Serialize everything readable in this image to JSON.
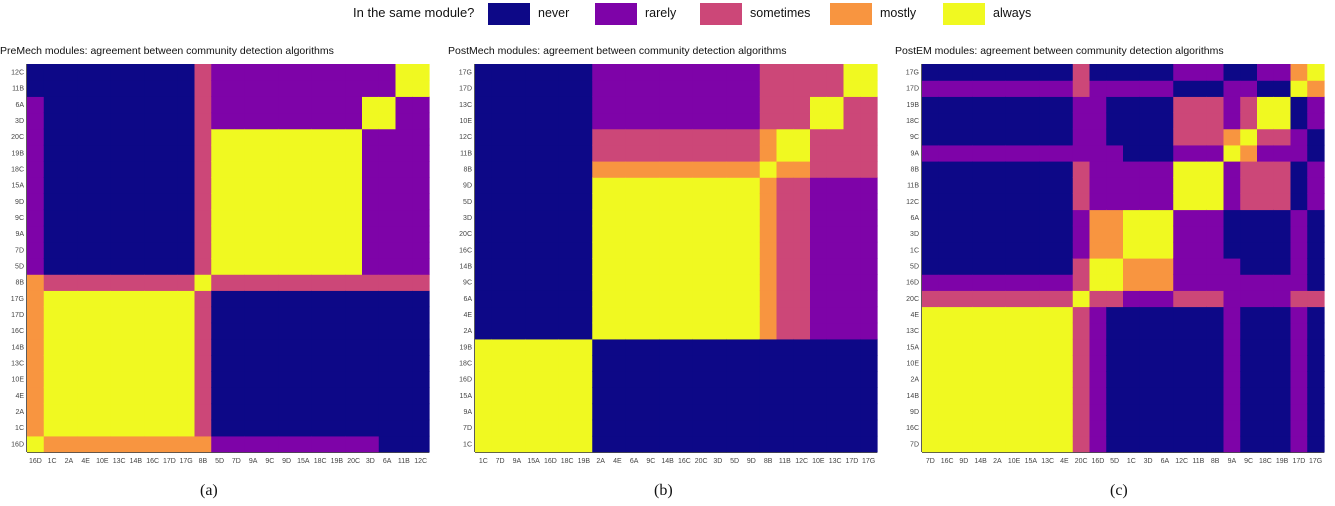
{
  "legend": {
    "title": "In the same module?",
    "items": [
      {
        "label": "never",
        "color": "#0d0887"
      },
      {
        "label": "rarely",
        "color": "#7e03a8"
      },
      {
        "label": "sometimes",
        "color": "#cc4778"
      },
      {
        "label": "mostly",
        "color": "#f89540"
      },
      {
        "label": "always",
        "color": "#f0f921"
      }
    ]
  },
  "captions": [
    "(a)",
    "(b)",
    "(c)"
  ],
  "chart_data": [
    {
      "type": "heatmap",
      "title": "PreMech modules: agreement between community detection algorithms",
      "labels": [
        "16D",
        "1C",
        "2A",
        "4E",
        "10E",
        "13C",
        "14B",
        "16C",
        "17D",
        "17G",
        "8B",
        "5D",
        "7D",
        "9A",
        "9C",
        "9D",
        "15A",
        "18C",
        "19B",
        "20C",
        "3D",
        "6A",
        "11B",
        "12C"
      ],
      "matrix_description": "values 0=never,1=rarely,2=sometimes,3=mostly,4=always; rows follow x order, y axis displayed bottom-to-top",
      "blocks": {
        "groups": [
          [
            0
          ],
          [
            1,
            2,
            3,
            4,
            5,
            6,
            7,
            8,
            9
          ],
          [
            10
          ],
          [
            11,
            12,
            13,
            14,
            15,
            16,
            17,
            18,
            19
          ],
          [
            20
          ],
          [
            21
          ],
          [
            22
          ],
          [
            23
          ]
        ],
        "group_levels": [
          [
            4,
            3,
            3,
            1,
            1,
            1,
            0,
            0
          ],
          [
            3,
            4,
            2,
            0,
            0,
            0,
            0,
            0
          ],
          [
            3,
            2,
            4,
            2,
            2,
            2,
            2,
            2
          ],
          [
            1,
            0,
            2,
            4,
            1,
            1,
            1,
            1
          ],
          [
            1,
            0,
            2,
            1,
            4,
            4,
            1,
            1
          ],
          [
            0,
            0,
            2,
            1,
            4,
            4,
            1,
            1
          ],
          [
            0,
            0,
            2,
            1,
            1,
            1,
            4,
            4
          ],
          [
            0,
            0,
            2,
            1,
            1,
            1,
            4,
            4
          ]
        ]
      }
    },
    {
      "type": "heatmap",
      "title": "PostMech modules: agreement between community detection algorithms",
      "labels": [
        "1C",
        "7D",
        "9A",
        "15A",
        "16D",
        "18C",
        "19B",
        "2A",
        "4E",
        "6A",
        "9C",
        "14B",
        "16C",
        "20C",
        "3D",
        "5D",
        "9D",
        "8B",
        "11B",
        "12C",
        "10E",
        "13C",
        "17D",
        "17G"
      ],
      "matrix_description": "values 0=never,1=rarely,2=sometimes,3=mostly,4=always; rows follow x order, y axis displayed bottom-to-top",
      "blocks": {
        "groups": [
          [
            0,
            1,
            2,
            3,
            4,
            5,
            6
          ],
          [
            7,
            8,
            9,
            10,
            11,
            12,
            13,
            14,
            15,
            16
          ],
          [
            17
          ],
          [
            18,
            19
          ],
          [
            20,
            21
          ],
          [
            22,
            23
          ]
        ],
        "group_levels": [
          [
            4,
            0,
            0,
            0,
            0,
            0
          ],
          [
            0,
            4,
            3,
            2,
            1,
            1
          ],
          [
            0,
            3,
            4,
            3,
            2,
            2
          ],
          [
            0,
            2,
            3,
            4,
            2,
            2
          ],
          [
            0,
            1,
            2,
            2,
            4,
            2
          ],
          [
            0,
            1,
            2,
            2,
            2,
            4
          ]
        ]
      }
    },
    {
      "type": "heatmap",
      "title": "PostEM modules: agreement between community detection algorithms",
      "labels": [
        "7D",
        "16C",
        "9D",
        "14B",
        "2A",
        "10E",
        "15A",
        "13C",
        "4E",
        "20C",
        "16D",
        "5D",
        "1C",
        "3D",
        "6A",
        "12C",
        "11B",
        "8B",
        "9A",
        "9C",
        "18C",
        "19B",
        "17D",
        "17G"
      ],
      "matrix_description": "values 0=never,1=rarely,2=sometimes,3=mostly,4=always; rows follow x order, y axis displayed bottom-to-top",
      "blocks": {
        "groups": [
          [
            0,
            1,
            2,
            3,
            4,
            5,
            6,
            7,
            8
          ],
          [
            9
          ],
          [
            10
          ],
          [
            11
          ],
          [
            12,
            13,
            14
          ],
          [
            15,
            16,
            17
          ],
          [
            18
          ],
          [
            19
          ],
          [
            20,
            21
          ],
          [
            22
          ],
          [
            23
          ]
        ],
        "group_levels": [
          [
            4,
            2,
            1,
            0,
            0,
            0,
            1,
            0,
            0,
            1,
            0
          ],
          [
            2,
            4,
            2,
            2,
            1,
            2,
            1,
            1,
            1,
            2,
            2
          ],
          [
            1,
            2,
            4,
            4,
            3,
            1,
            1,
            1,
            1,
            1,
            0
          ],
          [
            0,
            2,
            4,
            4,
            3,
            1,
            1,
            0,
            0,
            1,
            0
          ],
          [
            0,
            1,
            3,
            3,
            4,
            1,
            0,
            0,
            0,
            1,
            0
          ],
          [
            0,
            2,
            1,
            1,
            1,
            4,
            1,
            2,
            2,
            0,
            1
          ],
          [
            1,
            1,
            1,
            1,
            0,
            1,
            4,
            3,
            1,
            1,
            0
          ],
          [
            0,
            1,
            1,
            0,
            0,
            2,
            3,
            4,
            2,
            1,
            0
          ],
          [
            0,
            1,
            1,
            0,
            0,
            2,
            1,
            2,
            4,
            0,
            1
          ],
          [
            1,
            2,
            1,
            1,
            1,
            0,
            1,
            1,
            0,
            4,
            3
          ],
          [
            0,
            2,
            0,
            0,
            0,
            1,
            0,
            0,
            1,
            3,
            4
          ]
        ]
      }
    }
  ]
}
